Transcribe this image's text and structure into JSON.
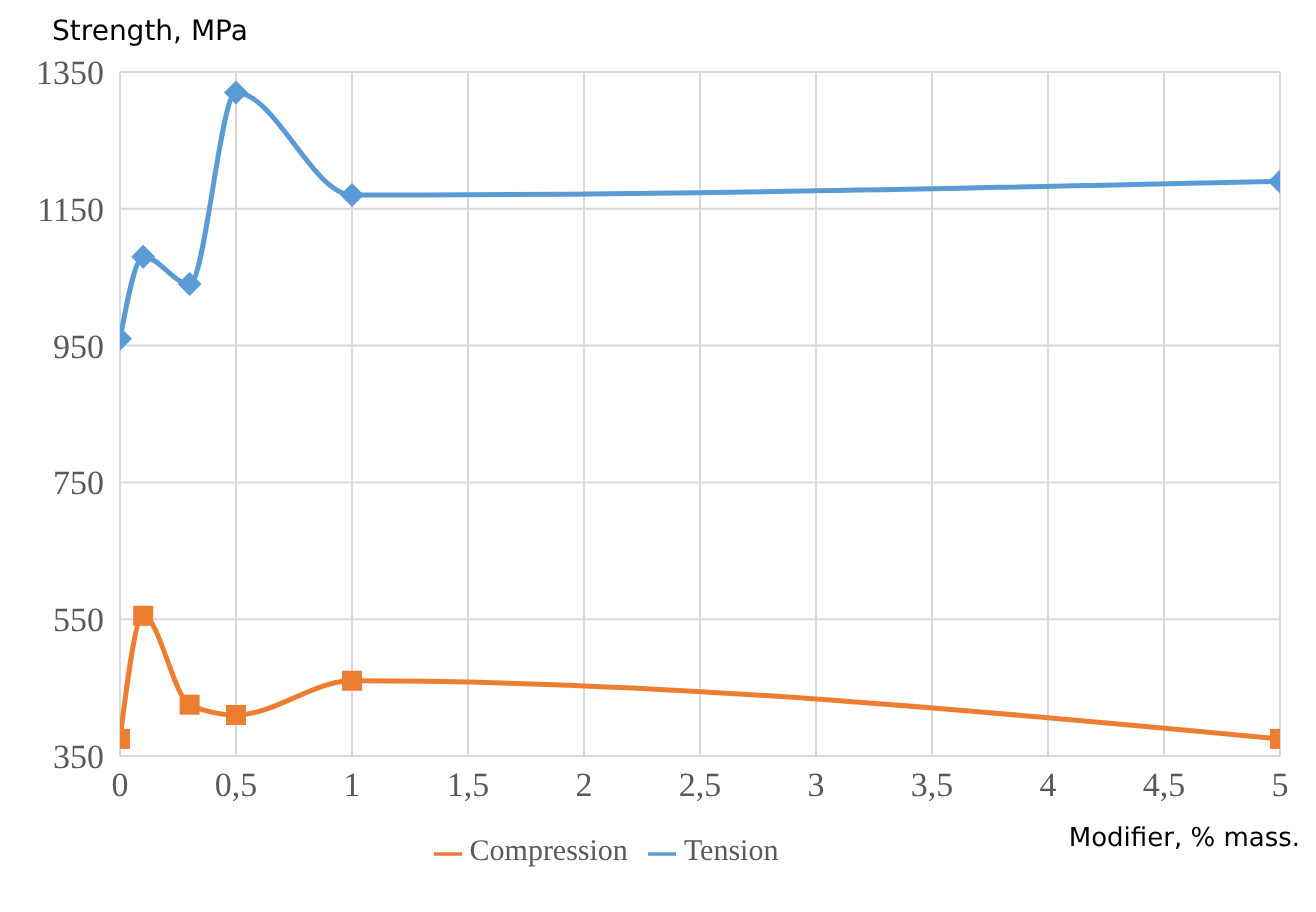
{
  "chart_data": {
    "type": "line",
    "xlabel": "Modifier, % mass.",
    "ylabel": "Strength, MPa",
    "x": [
      0,
      0.1,
      0.3,
      0.5,
      1,
      5
    ],
    "series": [
      {
        "name": "Tension",
        "color": "#5b9bd5",
        "marker": "diamond",
        "values": [
          960,
          1080,
          1040,
          1320,
          1170,
          1190
        ]
      },
      {
        "name": "Compression",
        "color": "#ed7d31",
        "marker": "square",
        "values": [
          375,
          555,
          425,
          410,
          460,
          375
        ]
      }
    ],
    "xlim": [
      0,
      5
    ],
    "xticks": [
      {
        "value": 0,
        "label": "0"
      },
      {
        "value": 0.5,
        "label": "0,5"
      },
      {
        "value": 1,
        "label": "1"
      },
      {
        "value": 1.5,
        "label": "1,5"
      },
      {
        "value": 2,
        "label": "2"
      },
      {
        "value": 2.5,
        "label": "2,5"
      },
      {
        "value": 3,
        "label": "3"
      },
      {
        "value": 3.5,
        "label": "3,5"
      },
      {
        "value": 4,
        "label": "4"
      },
      {
        "value": 4.5,
        "label": "4,5"
      },
      {
        "value": 5,
        "label": "5"
      }
    ],
    "ylim": [
      350,
      1350
    ],
    "yticks": [
      350,
      550,
      750,
      950,
      1150,
      1350
    ],
    "grid": true,
    "legend": "bottom",
    "line_style": "solid"
  }
}
